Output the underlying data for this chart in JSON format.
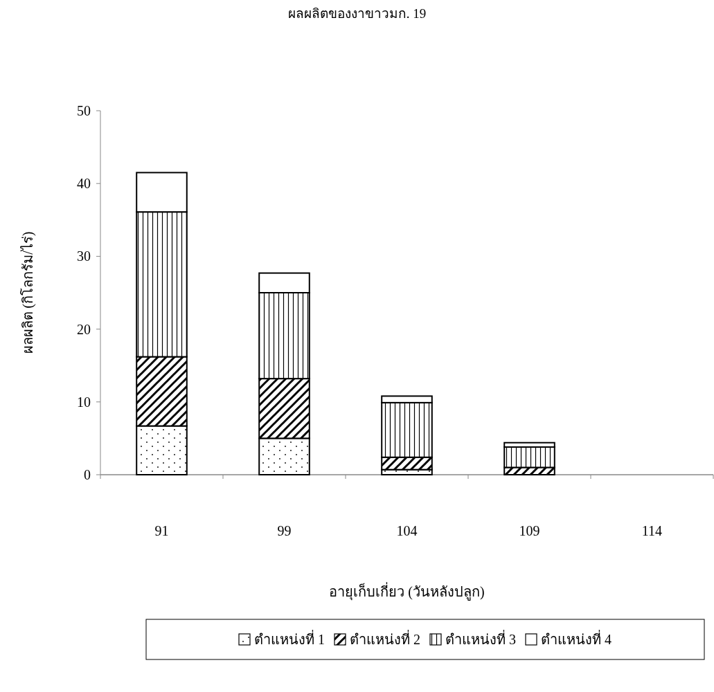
{
  "chart_data": {
    "type": "bar",
    "stacked": true,
    "title": "ผลผลิตของงาขาวมก. 19",
    "xlabel": "อายุเก็บเกี่ยว (วันหลังปลูก)",
    "ylabel": "ผลผลิต (กิโลกรัม/ไร่)",
    "categories": [
      "91",
      "99",
      "104",
      "109",
      "114"
    ],
    "series": [
      {
        "name": "ตำแหน่งที่ 1",
        "color": "#ffffff",
        "values": [
          6.7,
          5.0,
          0.7,
          0,
          0
        ]
      },
      {
        "name": "ตำแหน่งที่ 2",
        "color": "#ffffff",
        "values": [
          9.5,
          8.2,
          1.7,
          1.0,
          0
        ]
      },
      {
        "name": "ตำแหน่งที่ 3",
        "color": "#ffffff",
        "values": [
          19.9,
          11.8,
          7.5,
          2.8,
          0
        ]
      },
      {
        "name": "ตำแหน่งที่ 4",
        "color": "#ffffff",
        "values": [
          5.4,
          2.7,
          0.9,
          0.6,
          0
        ]
      }
    ],
    "ylim": [
      0,
      50
    ],
    "yticks": [
      0,
      10,
      20,
      30,
      40,
      50
    ],
    "grid": false,
    "legend": "bottom"
  }
}
